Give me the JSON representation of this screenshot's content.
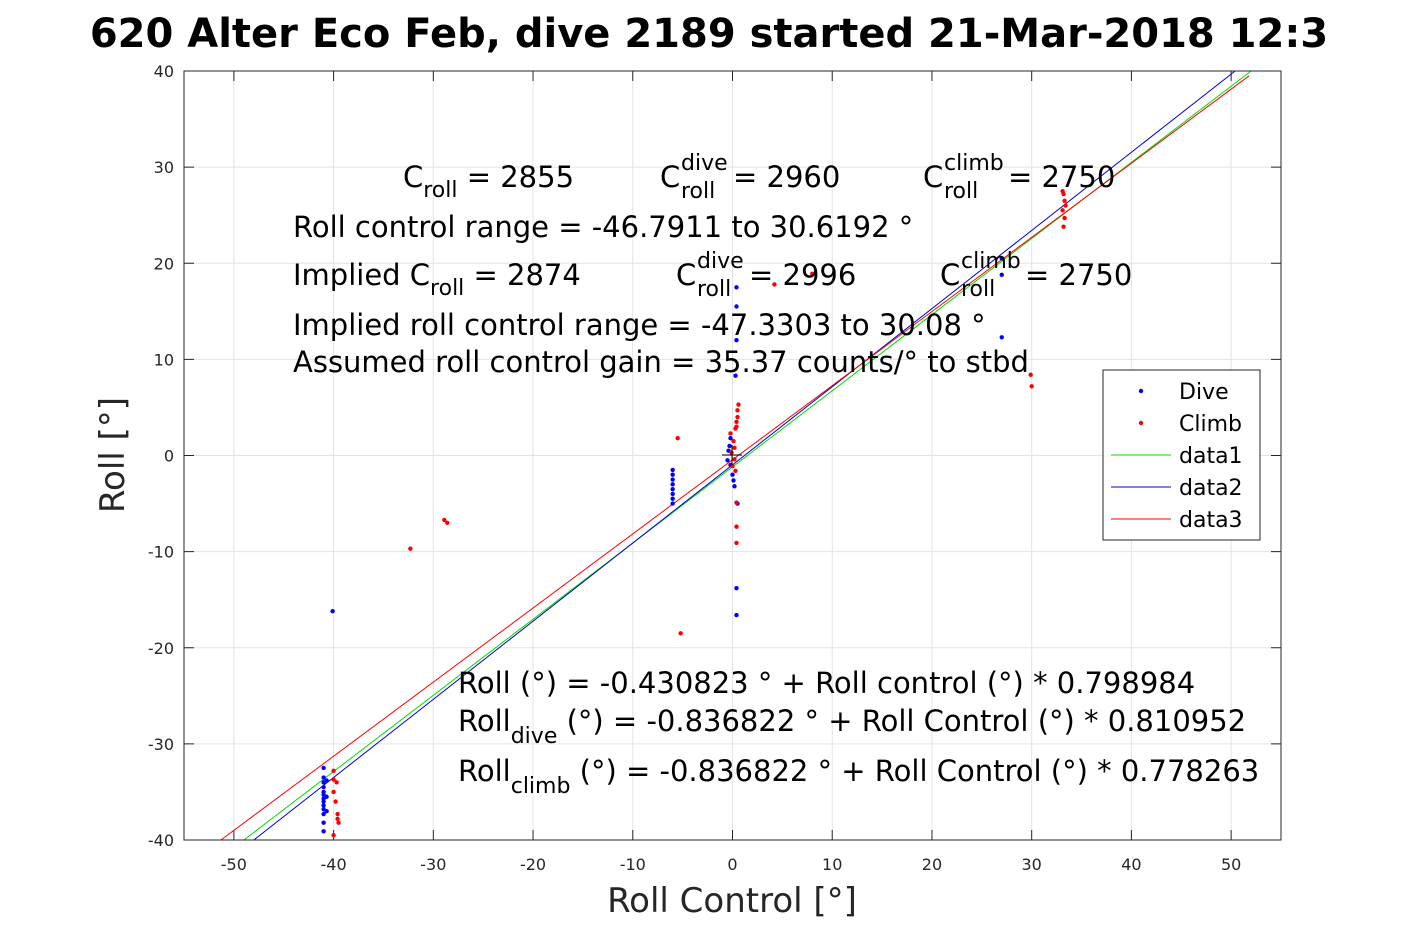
{
  "chart_data": {
    "type": "scatter",
    "title": "620 Alter Eco Feb, dive 2189 started 21-Mar-2018 12:3",
    "xlabel": "Roll Control [°]",
    "ylabel": "Roll [°]",
    "xlim": [
      -55,
      55
    ],
    "ylim": [
      -40,
      40
    ],
    "xticks": [
      -50,
      -40,
      -30,
      -20,
      -10,
      0,
      10,
      20,
      30,
      40,
      50
    ],
    "yticks": [
      -40,
      -30,
      -20,
      -10,
      0,
      10,
      20,
      30,
      40
    ],
    "grid": true,
    "legend_position": "right",
    "colors": {
      "dive": "#0000ff",
      "climb": "#ff0000",
      "data1": "#00dd00",
      "data2": "#0000cc",
      "data3": "#ff0000"
    },
    "series": [
      {
        "name": "Dive",
        "kind": "points",
        "color": "#0000ff",
        "points": [
          [
            -41,
            -32.5
          ],
          [
            -41,
            -33.5
          ],
          [
            -41,
            -34
          ],
          [
            -41,
            -34.5
          ],
          [
            -41,
            -35
          ],
          [
            -41,
            -35.3
          ],
          [
            -41,
            -35.7
          ],
          [
            -41,
            -36
          ],
          [
            -41,
            -36.4
          ],
          [
            -41,
            -36.8
          ],
          [
            -41,
            -37.3
          ],
          [
            -41,
            -38.2
          ],
          [
            -41,
            -39.1
          ],
          [
            -40.7,
            -33.8
          ],
          [
            -40.7,
            -35.5
          ],
          [
            -40.7,
            -37
          ],
          [
            -40.1,
            -16.2
          ],
          [
            -6,
            -1.5
          ],
          [
            -6,
            -2
          ],
          [
            -6,
            -2.5
          ],
          [
            -6,
            -3
          ],
          [
            -6,
            -3.5
          ],
          [
            -6,
            -4
          ],
          [
            -6,
            -4.5
          ],
          [
            -6,
            -5
          ],
          [
            -0.5,
            -0.5
          ],
          [
            -0.4,
            0.5
          ],
          [
            -0.3,
            1
          ],
          [
            -0.2,
            -1
          ],
          [
            -0.2,
            1.8
          ],
          [
            0,
            -2
          ],
          [
            0.1,
            -2.6
          ],
          [
            0.2,
            -3.2
          ],
          [
            0.3,
            8.3
          ],
          [
            0.4,
            12
          ],
          [
            0.4,
            15.5
          ],
          [
            0.4,
            17.5
          ],
          [
            0.4,
            -13.8
          ],
          [
            0.4,
            -16.6
          ],
          [
            0.5,
            -5
          ],
          [
            27,
            20.5
          ],
          [
            27,
            18.8
          ],
          [
            27,
            12.3
          ]
        ]
      },
      {
        "name": "Climb",
        "kind": "points",
        "color": "#ff0000",
        "points": [
          [
            -40,
            -32.8
          ],
          [
            -40,
            -33.7
          ],
          [
            -40,
            -35
          ],
          [
            -39.7,
            -34
          ],
          [
            -39.6,
            -37.3
          ],
          [
            -39.6,
            -37.8
          ],
          [
            -39.5,
            -38.2
          ],
          [
            -40,
            -39.5
          ],
          [
            -39.8,
            -36
          ],
          [
            -32.3,
            -9.7
          ],
          [
            -28.9,
            -6.7
          ],
          [
            -28.6,
            -7
          ],
          [
            -5.5,
            1.8
          ],
          [
            -5.2,
            -18.5
          ],
          [
            -0.2,
            2.3
          ],
          [
            -0.1,
            0.3
          ],
          [
            0,
            -1.1
          ],
          [
            0.1,
            1.5
          ],
          [
            0.2,
            0.8
          ],
          [
            0.2,
            -0.4
          ],
          [
            0.3,
            2.8
          ],
          [
            0.4,
            3.5
          ],
          [
            0.4,
            -4.9
          ],
          [
            0.4,
            -7.4
          ],
          [
            0.4,
            -9.1
          ],
          [
            0.5,
            4
          ],
          [
            0.6,
            5.3
          ],
          [
            0.5,
            4.7
          ],
          [
            0.4,
            3
          ],
          [
            0.3,
            -1.6
          ],
          [
            4.2,
            17.8
          ],
          [
            8,
            18.9
          ],
          [
            29.9,
            8.4
          ],
          [
            30,
            7.2
          ],
          [
            33.1,
            27.5
          ],
          [
            33.2,
            27.2
          ],
          [
            33.3,
            26.5
          ],
          [
            33.4,
            26
          ],
          [
            33.1,
            25.5
          ],
          [
            33.3,
            24.7
          ],
          [
            33.2,
            23.8
          ]
        ]
      },
      {
        "name": "data1",
        "kind": "line",
        "color": "#00dd00",
        "x": [
          -49,
          52
        ],
        "y": [
          -40,
          40
        ]
      },
      {
        "name": "data2",
        "kind": "line",
        "color": "#0000cc",
        "x": [
          -48,
          50.4
        ],
        "y": [
          -40,
          40
        ]
      },
      {
        "name": "data3",
        "kind": "line",
        "color": "#ff0000",
        "x": [
          -51.3,
          51.8
        ],
        "y": [
          -40,
          39.5
        ]
      }
    ],
    "legend": [
      {
        "label": "Dive",
        "style": "point",
        "color": "#0000ff"
      },
      {
        "label": "Climb",
        "style": "point",
        "color": "#ff0000"
      },
      {
        "label": "data1",
        "style": "line",
        "color": "#00dd00"
      },
      {
        "label": "data2",
        "style": "line",
        "color": "#0000cc"
      },
      {
        "label": "data3",
        "style": "line",
        "color": "#ff0000"
      }
    ],
    "annotations": {
      "c_roll": {
        "base": "C",
        "sub": "roll",
        "rest": " = 2855"
      },
      "c_roll_dive": {
        "base": "C",
        "sub": "roll",
        "sup": "dive",
        "rest": " = 2960"
      },
      "c_roll_climb": {
        "base": "C",
        "sub": "roll",
        "sup": "climb",
        "rest": " = 2750"
      },
      "range": "Roll control range = -46.7911 to 30.6192 °",
      "implied_c_roll": {
        "prefix": "Implied C",
        "sub": "roll",
        "rest": " = 2874"
      },
      "implied_c_roll_dive": {
        "base": "C",
        "sub": "roll",
        "sup": "dive",
        "rest": " = 2996"
      },
      "implied_c_roll_climb": {
        "base": "C",
        "sub": "roll",
        "sup": "climb",
        "rest": " = 2750"
      },
      "implied_range": "Implied roll control range = -47.3303 to 30.08 °",
      "gain": "Assumed roll control gain = 35.37 counts/° to stbd",
      "fit": "Roll (°) = -0.430823 ° + Roll control (°) * 0.798984",
      "fit_dive": {
        "base": "Roll",
        "sub": "dive",
        "rest": " (°) = -0.836822 ° + Roll Control (°) * 0.810952"
      },
      "fit_climb": {
        "base": "Roll",
        "sub": "climb",
        "rest": " (°) = -0.836822 ° + Roll Control (°) * 0.778263"
      }
    }
  }
}
